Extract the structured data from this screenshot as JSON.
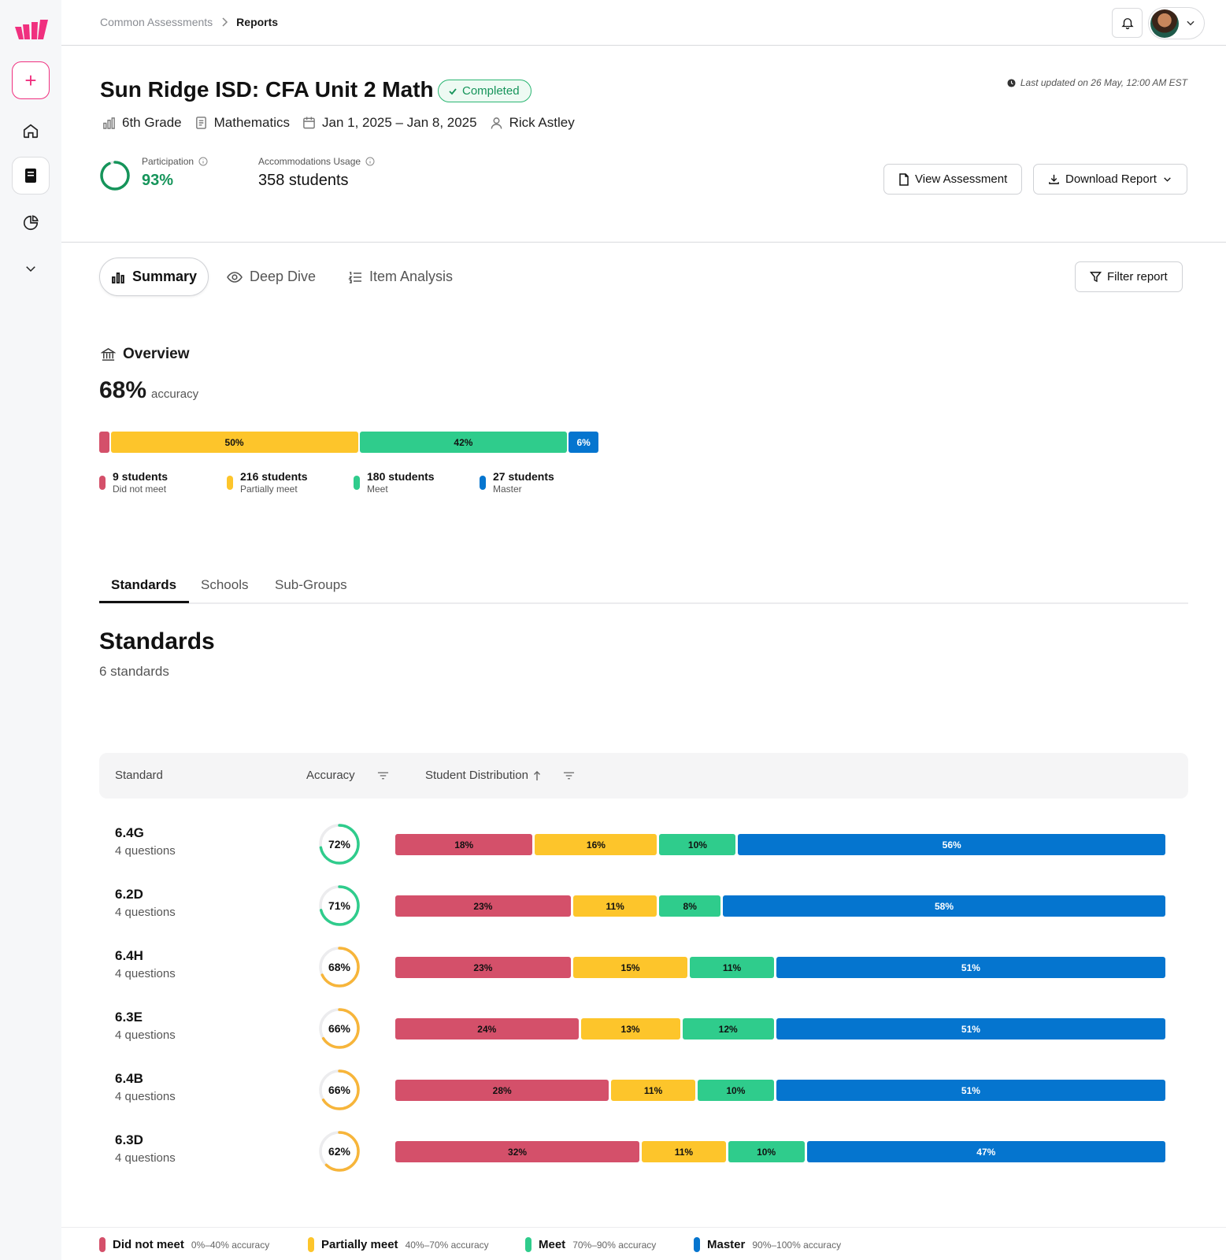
{
  "breadcrumb": {
    "parent": "Common Assessments",
    "current": "Reports"
  },
  "assessment": {
    "title": "Sun Ridge ISD: CFA Unit 2 Math",
    "status": "Completed",
    "last_updated": "Last updated on 26 May, 12:00 AM EST",
    "grade": "6th Grade",
    "subject": "Mathematics",
    "dates": "Jan 1, 2025 – Jan 8, 2025",
    "author": "Rick Astley"
  },
  "kpis": {
    "participation_label": "Participation",
    "participation_value": "93%",
    "participation_fraction": 0.93,
    "accommodations_label": "Accommodations Usage",
    "accommodations_value": "358 students"
  },
  "actions": {
    "view": "View Assessment",
    "download": "Download Report",
    "filter": "Filter report"
  },
  "view_tabs": [
    "Summary",
    "Deep Dive",
    "Item Analysis"
  ],
  "overview": {
    "title": "Overview",
    "accuracy_value": "68%",
    "accuracy_label": "accuracy",
    "bar": [
      {
        "label": "",
        "value": 2
      },
      {
        "label": "50%",
        "value": 50
      },
      {
        "label": "42%",
        "value": 42
      },
      {
        "label": "6%",
        "value": 6
      }
    ],
    "legend": [
      {
        "count": "9 students",
        "label": "Did not meet"
      },
      {
        "count": "216 students",
        "label": "Partially meet"
      },
      {
        "count": "180 students",
        "label": "Meet"
      },
      {
        "count": "27 students",
        "label": "Master"
      }
    ]
  },
  "section_tabs": [
    "Standards",
    "Schools",
    "Sub-Groups"
  ],
  "standards": {
    "heading": "Standards",
    "count": "6 standards",
    "columns": [
      "Standard",
      "Accuracy",
      "Student Distribution"
    ],
    "rows": [
      {
        "name": "6.4G",
        "questions": "4 questions",
        "accuracy": "72%",
        "acc_value": 72,
        "dist": [
          18,
          16,
          10,
          56
        ],
        "dist_labels": [
          "18%",
          "16%",
          "10%",
          "56%"
        ]
      },
      {
        "name": "6.2D",
        "questions": "4 questions",
        "accuracy": "71%",
        "acc_value": 71,
        "dist": [
          23,
          11,
          8,
          58
        ],
        "dist_labels": [
          "23%",
          "11%",
          "8%",
          "58%"
        ]
      },
      {
        "name": "6.4H",
        "questions": "4 questions",
        "accuracy": "68%",
        "acc_value": 68,
        "dist": [
          23,
          15,
          11,
          51
        ],
        "dist_labels": [
          "23%",
          "15%",
          "11%",
          "51%"
        ]
      },
      {
        "name": "6.3E",
        "questions": "4 questions",
        "accuracy": "66%",
        "acc_value": 66,
        "dist": [
          24,
          13,
          12,
          51
        ],
        "dist_labels": [
          "24%",
          "13%",
          "12%",
          "51%"
        ]
      },
      {
        "name": "6.4B",
        "questions": "4 questions",
        "accuracy": "66%",
        "acc_value": 66,
        "dist": [
          28,
          11,
          10,
          51
        ],
        "dist_labels": [
          "28%",
          "11%",
          "10%",
          "51%"
        ]
      },
      {
        "name": "6.3D",
        "questions": "4 questions",
        "accuracy": "62%",
        "acc_value": 62,
        "dist": [
          32,
          11,
          10,
          47
        ],
        "dist_labels": [
          "32%",
          "11%",
          "10%",
          "47%"
        ]
      }
    ]
  },
  "footer_legend": [
    {
      "name": "Did not meet",
      "range": "0%–40% accuracy"
    },
    {
      "name": "Partially meet",
      "range": "40%–70% accuracy"
    },
    {
      "name": "Meet",
      "range": "70%–90% accuracy"
    },
    {
      "name": "Master",
      "range": "90%–100% accuracy"
    }
  ],
  "colors": {
    "red": "#d4506a",
    "yellow": "#fdc52b",
    "green": "#2fcc8c",
    "blue": "#0575cf",
    "ring_green": "#2fcc8c",
    "ring_orange": "#f7b53a",
    "brand": "#f0307f"
  }
}
